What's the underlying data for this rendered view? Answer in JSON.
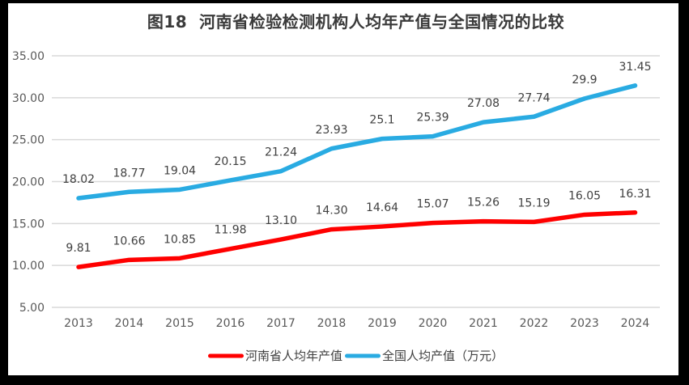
{
  "title": "图18  河南省检验检测机构人均年产值与全国情况的比较",
  "chart_data": {
    "type": "line",
    "title": "图18  河南省检验检测机构人均年产值与全国情况的比较",
    "categories": [
      "2013",
      "2014",
      "2015",
      "2016",
      "2017",
      "2018",
      "2019",
      "2020",
      "2021",
      "2022",
      "2023",
      "2024"
    ],
    "series": [
      {
        "name": "河南省人均年产值",
        "color": "#FF0000",
        "values": [
          9.81,
          10.66,
          10.85,
          11.98,
          13.1,
          14.3,
          14.64,
          15.07,
          15.26,
          15.19,
          16.05,
          16.31
        ],
        "labels": [
          "9.81",
          "10.66",
          "10.85",
          "11.98",
          "13.10",
          "14.30",
          "14.64",
          "15.07",
          "15.26",
          "15.19",
          "16.05",
          "16.31"
        ]
      },
      {
        "name": "全国人均产值（万元）",
        "color": "#29ABE2",
        "values": [
          18.02,
          18.77,
          19.04,
          20.15,
          21.24,
          23.93,
          25.1,
          25.39,
          27.08,
          27.74,
          29.9,
          31.45
        ],
        "labels": [
          "18.02",
          "18.77",
          "19.04",
          "20.15",
          "21.24",
          "23.93",
          "25.1",
          "25.39",
          "27.08",
          "27.74",
          "29.9",
          "31.45"
        ]
      }
    ],
    "ylim": [
      5,
      35
    ],
    "ytick_values": [
      5,
      10,
      15,
      20,
      25,
      30,
      35
    ],
    "ytick_labels": [
      "5.00",
      "10.00",
      "15.00",
      "20.00",
      "25.00",
      "30.00",
      "35.00"
    ],
    "xlabel": "",
    "ylabel": "",
    "grid": true,
    "legend_position": "bottom",
    "colors": {
      "gridline": "#D9D9D9",
      "axis_label": "#595959",
      "data_label": "#404040",
      "title": "#3A3A3A",
      "frame": "#000000",
      "background": "#FFFFFF"
    }
  }
}
